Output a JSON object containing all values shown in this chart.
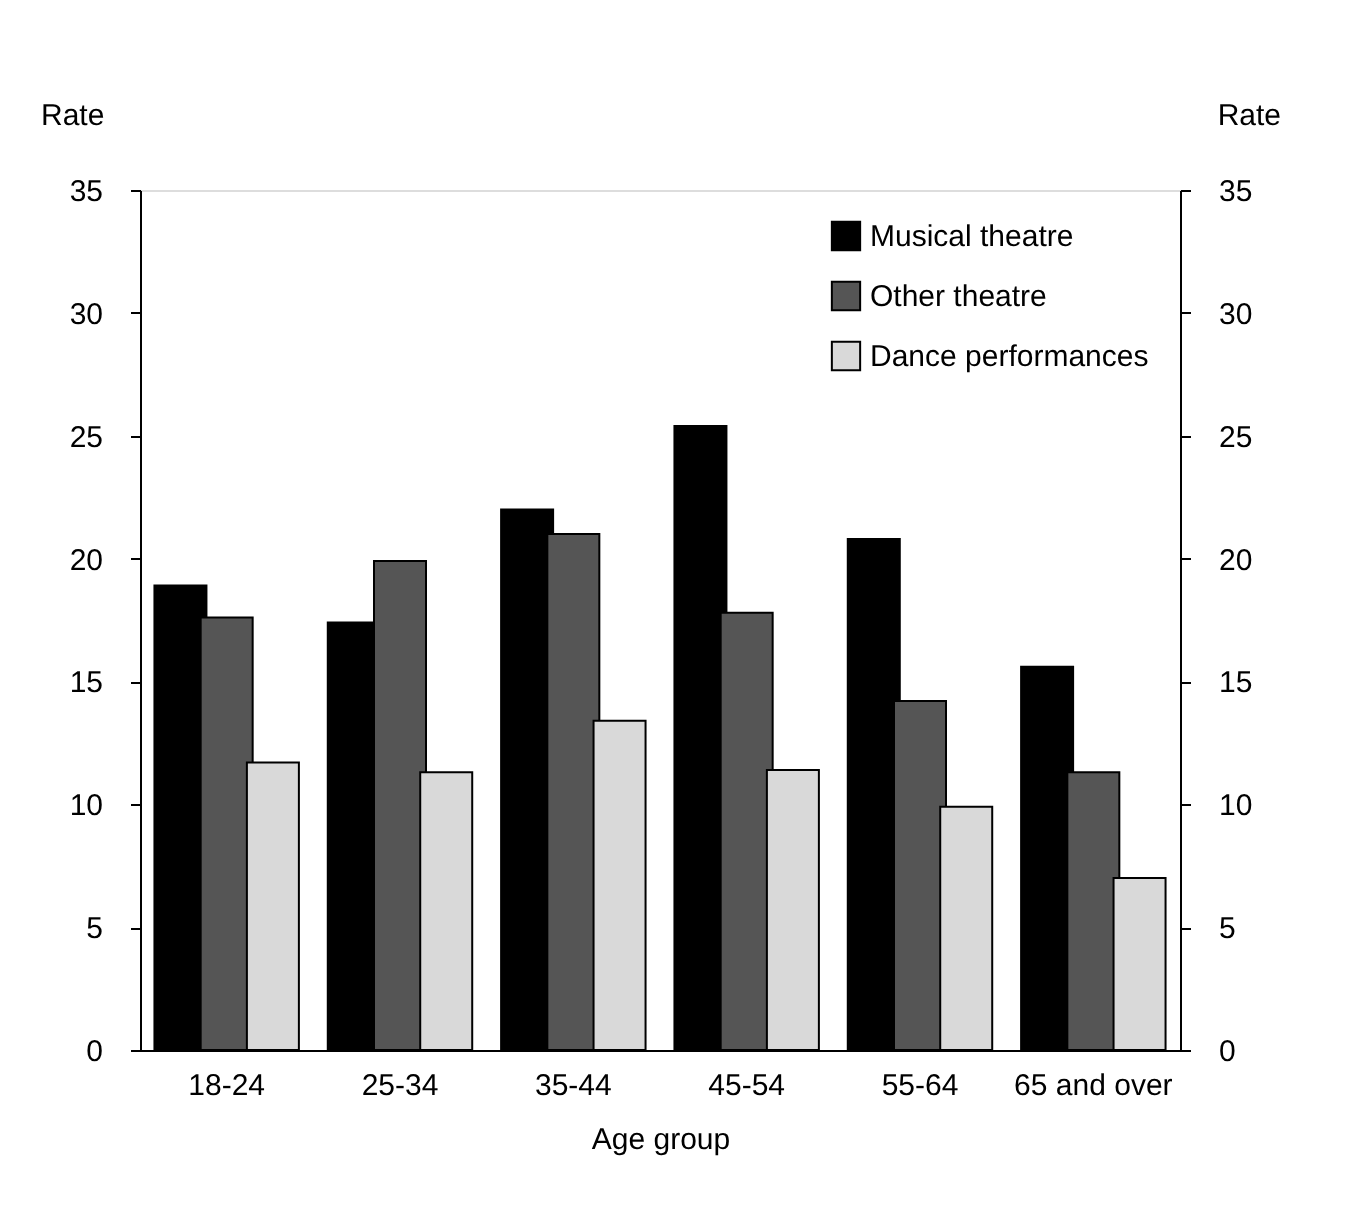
{
  "chart_data": {
    "type": "bar",
    "xlabel": "Age group",
    "ylabel": "Rate",
    "y2label": "Rate",
    "categories": [
      "18-24",
      "25-34",
      "35-44",
      "45-54",
      "55-64",
      "65 and over"
    ],
    "series": [
      {
        "name": "Musical theatre",
        "color": "#000000",
        "values": [
          18.9,
          17.4,
          22.0,
          25.4,
          20.8,
          15.6
        ]
      },
      {
        "name": "Other theatre",
        "color": "#555555",
        "values": [
          17.6,
          19.9,
          21.0,
          17.8,
          14.2,
          11.3
        ]
      },
      {
        "name": "Dance performances",
        "color": "#d9d9d9",
        "values": [
          11.7,
          11.3,
          13.4,
          11.4,
          9.9,
          7.0
        ]
      }
    ],
    "ylim": [
      0,
      35
    ],
    "yticks": [
      0,
      5,
      10,
      15,
      20,
      25,
      30,
      35
    ],
    "y2lim": [
      0,
      35
    ],
    "y2ticks": [
      0,
      5,
      10,
      15,
      20,
      25,
      30,
      35
    ],
    "grid": false,
    "legend": "top right"
  }
}
